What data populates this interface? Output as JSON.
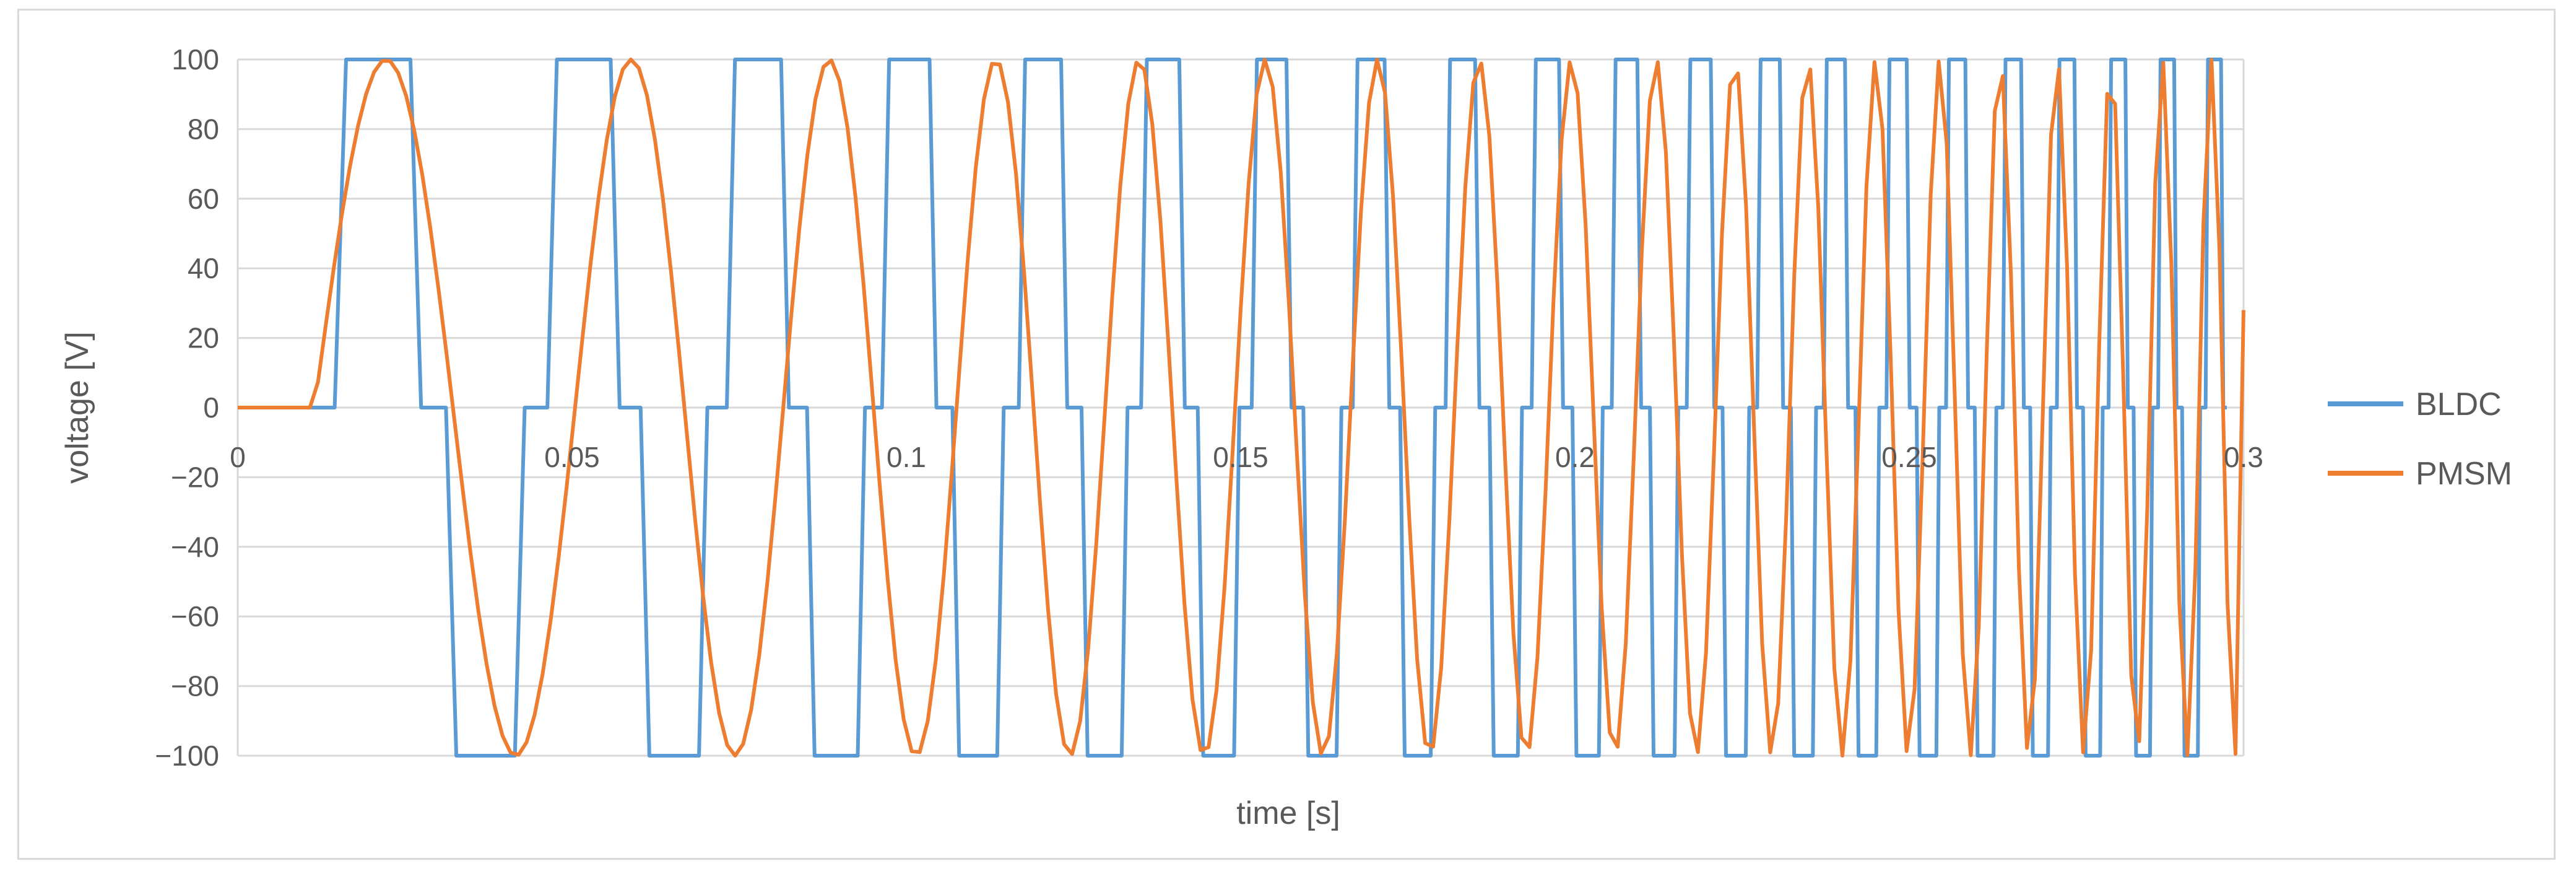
{
  "chart_data": {
    "type": "line",
    "title": "",
    "xlabel": "time [s]",
    "ylabel": "voltage [V]",
    "xlim": [
      0,
      0.3
    ],
    "ylim": [
      -100,
      100
    ],
    "x_ticks": [
      "0",
      "0.05",
      "0.1",
      "0.15",
      "0.2",
      "0.25",
      "0.3"
    ],
    "y_ticks": [
      "100",
      "80",
      "60",
      "40",
      "20",
      "0",
      "-20",
      "-40",
      "-60",
      "-80",
      "-100"
    ],
    "grid": "horizontal",
    "legend_position": "right",
    "series": [
      {
        "name": "BLDC",
        "color": "#5b9bd5",
        "shape": "six-step trapezoidal: +100, 0, -100, 0 with rising frequency",
        "start_time": 0.0145,
        "end_time": 0.2975,
        "initial_period": 0.034,
        "final_period": 0.0068
      },
      {
        "name": "PMSM",
        "color": "#ed7d31",
        "shape": "sinusoidal with rising frequency",
        "amplitude": 100,
        "initial_period": 0.0475,
        "final_period": 0.0069,
        "end_value": 28
      }
    ]
  }
}
